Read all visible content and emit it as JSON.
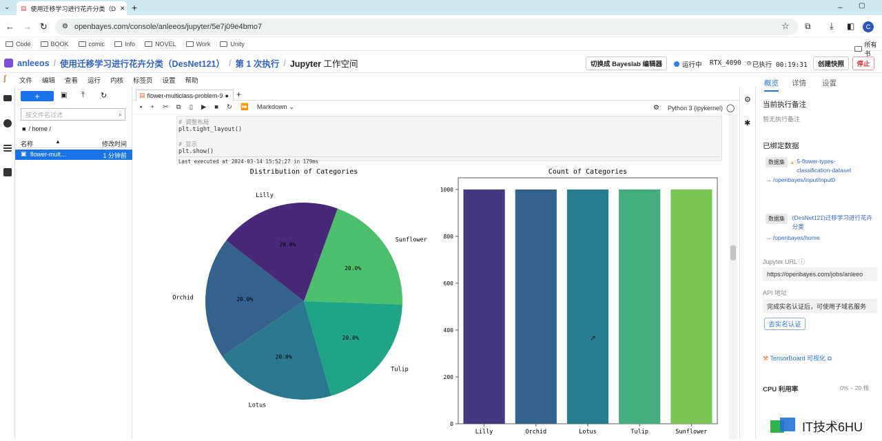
{
  "browser": {
    "tab_title": "使用迁移学习进行花卉分类（D",
    "url": "openbayes.com/console/anleeos/jupyter/5e7j09e4bmo7",
    "profile_initial": "C",
    "bookmarks": [
      "Code",
      "BOOK",
      "comic",
      "Info",
      "NOVEL",
      "Work",
      "Unity"
    ],
    "bookmarks_right": "所有书"
  },
  "header": {
    "user": "anleeos",
    "project": "使用迁移学习进行花卉分类（DesNet121）",
    "run": "第 1 次执行",
    "workspace_bold": "Jupyter",
    "workspace_rest": "工作空间",
    "switch_editor": "切换成 Bayeslab 编辑器",
    "status": "运行中",
    "gpu": "RTX_4090",
    "elapsed": "已执行 00:19:31",
    "snapshot": "创建快照",
    "stop": "停止"
  },
  "menu": [
    "文件",
    "编辑",
    "查看",
    "运行",
    "内核",
    "标签页",
    "设置",
    "帮助"
  ],
  "filebrowser": {
    "search_placeholder": "按文件名过滤",
    "path": "/ home /",
    "col_name": "名称",
    "col_modified": "修改时间",
    "file_name": "flower-mult...",
    "file_time": "1 分钟前"
  },
  "notebook": {
    "tab_name": "flower-multiclass-problem-9",
    "cell_type": "Markdown",
    "kernel": "Python 3 (ipykernel)",
    "code_comment1": "# 调整布局",
    "code_line1": "plt.tight_layout()",
    "code_comment2": "# 显示",
    "code_line2": "plt.show()",
    "exec_info": "Last executed at 2024-03-14 15:52:27 in 179ms"
  },
  "chart_data": [
    {
      "type": "pie",
      "title": "Distribution of Categories",
      "categories": [
        "Sunflower",
        "Tulip",
        "Lotus",
        "Orchid",
        "Lilly"
      ],
      "values": [
        20.0,
        20.0,
        20.0,
        20.0,
        20.0
      ],
      "labels": [
        "20.0%",
        "20.0%",
        "20.0%",
        "20.0%",
        "20.0%"
      ],
      "colors": [
        "#4bbf6b",
        "#20a486",
        "#2a788e",
        "#33638d",
        "#482878"
      ]
    },
    {
      "type": "bar",
      "title": "Count of Categories",
      "categories": [
        "Lilly",
        "Orchid",
        "Lotus",
        "Tulip",
        "Sunflower"
      ],
      "values": [
        1000,
        1000,
        1000,
        1000,
        1000
      ],
      "yticks": [
        0,
        200,
        400,
        600,
        800,
        1000
      ],
      "ylim": [
        0,
        1050
      ],
      "colors": [
        "#453781",
        "#33638d",
        "#287d8e",
        "#44ad7d",
        "#7ac553"
      ]
    }
  ],
  "panel": {
    "tabs": [
      "概览",
      "详情",
      "设置"
    ],
    "note_title": "当前执行备注",
    "note_value": "暂无执行备注",
    "bound_title": "已绑定数据",
    "dataset_tag": "数据集",
    "dataset1_name": "5-flower-types-classification-dataset",
    "dataset1_path": "/openbayes/input/input0",
    "dataset2_name": "(DesNet121)迁移学习进行花卉分类",
    "dataset2_path": "/openbayes/home",
    "jupyter_url_label": "Jupyter URL",
    "jupyter_url": "https://openbayes.com/jobs/anleeo",
    "api_label": "API 地址",
    "api_value": "完成实名认证后，可使用子域名服务",
    "verify_button": "去实名认证",
    "tensorboard": "TensorBoard 可视化",
    "cpu_label": "CPU 利用率",
    "cpu_value": "0% – 20 核"
  },
  "watermark": "IT技术6HU"
}
